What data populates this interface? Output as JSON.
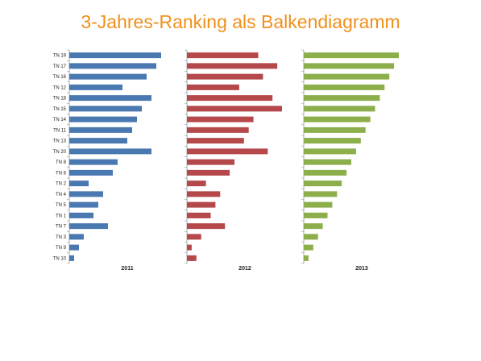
{
  "chart_data": {
    "type": "bar",
    "orientation": "horizontal",
    "title": "3-Jahres-Ranking als Balkendiagramm",
    "categories": [
      "TN 19",
      "TN 17",
      "TN 16",
      "TN 12",
      "TN 18",
      "TN 15",
      "TN 14",
      "TN 11",
      "TN 13",
      "TN 20",
      "TN 8",
      "TN 6",
      "TN 2",
      "TN 4",
      "TN 5",
      "TN 1",
      "TN 7",
      "TN 3",
      "TN 9",
      "TN 10"
    ],
    "series": [
      {
        "name": "2011",
        "color": "#4a78b0",
        "values": [
          19,
          18,
          16,
          11,
          17,
          15,
          14,
          13,
          12,
          17,
          10,
          9,
          4,
          7,
          6,
          5,
          8,
          3,
          2,
          1
        ]
      },
      {
        "name": "2012",
        "color": "#b5484a",
        "values": [
          15,
          19,
          16,
          11,
          18,
          20,
          14,
          13,
          12,
          17,
          10,
          9,
          4,
          7,
          6,
          5,
          8,
          3,
          1,
          2
        ]
      },
      {
        "name": "2013",
        "color": "#8cae4b",
        "values": [
          20,
          19,
          18,
          17,
          16,
          15,
          14,
          13,
          12,
          11,
          10,
          9,
          8,
          7,
          6,
          5,
          4,
          3,
          2,
          1
        ]
      }
    ],
    "grid": false,
    "legend": "none"
  }
}
